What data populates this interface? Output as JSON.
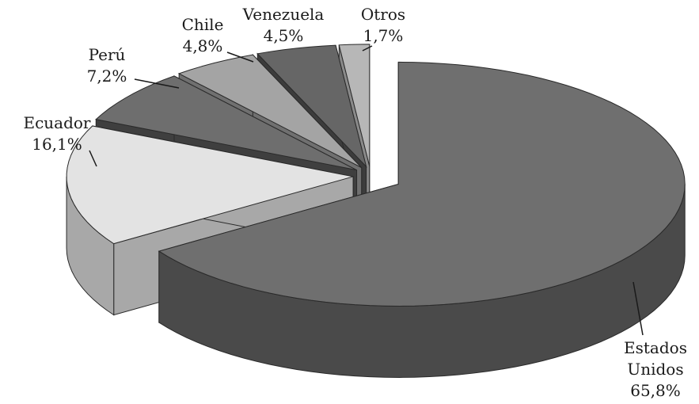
{
  "chart_data": {
    "type": "pie",
    "title": "",
    "style": "3d-exploded",
    "legend": "none",
    "categories": [
      "Estados Unidos",
      "Ecuador",
      "Perú",
      "Chile",
      "Venezuela",
      "Otros"
    ],
    "values": [
      65.8,
      16.1,
      7.2,
      4.8,
      4.5,
      1.7
    ],
    "labels": [
      {
        "name_lines": [
          "Estados",
          "Unidos"
        ],
        "value_text": "65,8%"
      },
      {
        "name_lines": [
          "Ecuador"
        ],
        "value_text": "16,1%"
      },
      {
        "name_lines": [
          "Perú"
        ],
        "value_text": "7,2%"
      },
      {
        "name_lines": [
          "Chile"
        ],
        "value_text": "4,8%"
      },
      {
        "name_lines": [
          "Venezuela"
        ],
        "value_text": "4,5%"
      },
      {
        "name_lines": [
          "Otros"
        ],
        "value_text": "1,7%"
      }
    ],
    "colors": {
      "top": [
        "#6f6f6f",
        "#e3e3e3",
        "#6e6e6e",
        "#a4a4a4",
        "#666666",
        "#b7b7b7"
      ],
      "side": [
        "#4a4a4a",
        "#a8a8a8",
        "#3f3f3f",
        "#707070",
        "#3c3c3c",
        "#8a8a8a"
      ],
      "outline": "#2a2a2a"
    }
  }
}
